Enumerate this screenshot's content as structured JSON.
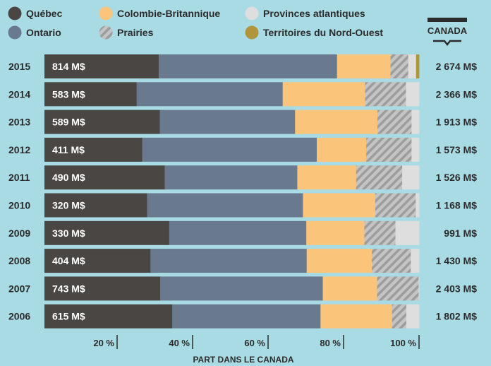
{
  "chart_data": {
    "type": "bar",
    "orientation": "horizontal",
    "stacked": "percent",
    "legend": [
      {
        "name": "Québec",
        "color": "#4a4643",
        "pattern": "solid"
      },
      {
        "name": "Colombie-Britannique",
        "color": "#fbc47b",
        "pattern": "solid"
      },
      {
        "name": "Provinces atlantiques",
        "color": "#dedede",
        "pattern": "solid"
      },
      {
        "name": "Ontario",
        "color": "#6a7a8e",
        "pattern": "solid"
      },
      {
        "name": "Prairies",
        "color": "#b8b8b8",
        "pattern": "hatched"
      },
      {
        "name": "Territoires du Nord-Ouest",
        "color": "#b0953a",
        "pattern": "solid"
      }
    ],
    "series_order": [
      "Québec",
      "Ontario",
      "Colombie-Britannique",
      "Prairies",
      "Provinces atlantiques",
      "Territoires du Nord-Ouest"
    ],
    "categories": [
      "2015",
      "2014",
      "2013",
      "2012",
      "2011",
      "2010",
      "2009",
      "2008",
      "2007",
      "2006"
    ],
    "series": [
      {
        "name": "Québec",
        "values": [
          30.5,
          24.6,
          30.8,
          26.1,
          32.1,
          27.4,
          33.3,
          28.3,
          30.9,
          34.1
        ]
      },
      {
        "name": "Ontario",
        "values": [
          47.6,
          39.0,
          36.1,
          46.6,
          35.4,
          41.6,
          36.6,
          41.7,
          43.4,
          39.6
        ]
      },
      {
        "name": "Colombie-Britannique",
        "values": [
          14.3,
          22.0,
          22.0,
          13.2,
          15.7,
          19.3,
          15.5,
          17.4,
          14.5,
          19.1
        ]
      },
      {
        "name": "Prairies",
        "values": [
          4.7,
          10.9,
          9.1,
          12.1,
          12.3,
          10.8,
          8.3,
          10.4,
          11.1,
          3.8
        ]
      },
      {
        "name": "Provinces atlantiques",
        "values": [
          2.1,
          3.5,
          2.0,
          2.0,
          4.5,
          0.9,
          6.3,
          2.2,
          0.1,
          3.4
        ]
      },
      {
        "name": "Territoires du Nord-Ouest",
        "values": [
          0.8,
          0,
          0,
          0,
          0,
          0,
          0,
          0,
          0,
          0
        ]
      }
    ],
    "quebec_labels": [
      "814 M$",
      "583 M$",
      "589 M$",
      "411 M$",
      "490 M$",
      "320 M$",
      "330 M$",
      "404 M$",
      "743 M$",
      "615 M$"
    ],
    "totals_header": "CANADA",
    "totals": [
      "2 674 M$",
      "2 366 M$",
      "1 913 M$",
      "1 573 M$",
      "1 526 M$",
      "1 168 M$",
      "991 M$",
      "1 430 M$",
      "2 403 M$",
      "1 802 M$"
    ],
    "xlabel": "PART DANS LE CANADA",
    "x_ticks": [
      20,
      40,
      60,
      80,
      100
    ],
    "x_tick_labels": [
      "20 %",
      "40 %",
      "60 %",
      "80 %",
      "100 %"
    ],
    "xlim": [
      0,
      100
    ],
    "grid": false,
    "legend_position": "top"
  }
}
